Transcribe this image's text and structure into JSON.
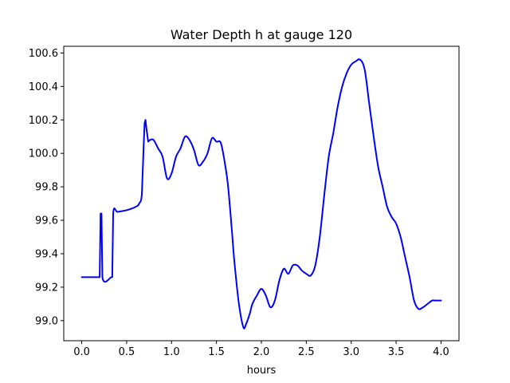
{
  "chart_data": {
    "type": "line",
    "title": "Water Depth h at gauge 120",
    "xlabel": "hours",
    "ylabel": "",
    "xlim": [
      -0.2,
      4.2
    ],
    "ylim": [
      98.88,
      100.64
    ],
    "xticks": [
      0.0,
      0.5,
      1.0,
      1.5,
      2.0,
      2.5,
      3.0,
      3.5,
      4.0
    ],
    "xtick_labels": [
      "0.0",
      "0.5",
      "1.0",
      "1.5",
      "2.0",
      "2.5",
      "3.0",
      "3.5",
      "4.0"
    ],
    "yticks": [
      99.0,
      99.2,
      99.4,
      99.6,
      99.8,
      100.0,
      100.2,
      100.4,
      100.6
    ],
    "ytick_labels": [
      "99.0",
      "99.2",
      "99.4",
      "99.6",
      "99.8",
      "100.0",
      "100.2",
      "100.4",
      "100.6"
    ],
    "grid": false,
    "series": [
      {
        "color": "#0000ff",
        "x": [
          0.0,
          0.19,
          0.2,
          0.21,
          0.22,
          0.23,
          0.33,
          0.34,
          0.35,
          0.4,
          0.5,
          0.6,
          0.64,
          0.67,
          0.69,
          0.7,
          0.71,
          0.72,
          0.74,
          0.76,
          0.8,
          0.85,
          0.9,
          0.95,
          1.0,
          1.05,
          1.1,
          1.15,
          1.2,
          1.25,
          1.3,
          1.35,
          1.4,
          1.45,
          1.5,
          1.55,
          1.6,
          1.63,
          1.67,
          1.7,
          1.75,
          1.8,
          1.83,
          1.87,
          1.9,
          1.95,
          2.0,
          2.05,
          2.1,
          2.15,
          2.2,
          2.25,
          2.3,
          2.35,
          2.4,
          2.45,
          2.5,
          2.55,
          2.6,
          2.65,
          2.7,
          2.75,
          2.8,
          2.85,
          2.9,
          2.95,
          3.0,
          3.05,
          3.1,
          3.15,
          3.2,
          3.25,
          3.3,
          3.35,
          3.4,
          3.45,
          3.5,
          3.55,
          3.6,
          3.65,
          3.7,
          3.75,
          3.8,
          3.85,
          3.9,
          3.93,
          3.96,
          4.0
        ],
        "y": [
          99.26,
          99.26,
          99.26,
          99.64,
          99.64,
          99.26,
          99.26,
          99.26,
          99.64,
          99.65,
          99.66,
          99.68,
          99.7,
          99.76,
          100.05,
          100.18,
          100.2,
          100.15,
          100.07,
          100.08,
          100.08,
          100.03,
          99.98,
          99.85,
          99.88,
          99.98,
          100.03,
          100.1,
          100.08,
          100.02,
          99.93,
          99.95,
          100.0,
          100.09,
          100.07,
          100.06,
          99.92,
          99.8,
          99.55,
          99.35,
          99.1,
          98.96,
          98.98,
          99.04,
          99.1,
          99.15,
          99.19,
          99.15,
          99.08,
          99.12,
          99.24,
          99.31,
          99.28,
          99.33,
          99.33,
          99.3,
          99.28,
          99.27,
          99.33,
          99.5,
          99.75,
          99.98,
          100.12,
          100.28,
          100.4,
          100.48,
          100.53,
          100.55,
          100.56,
          100.5,
          100.3,
          100.1,
          99.92,
          99.8,
          99.68,
          99.62,
          99.58,
          99.5,
          99.38,
          99.26,
          99.12,
          99.07,
          99.08,
          99.1,
          99.12,
          99.12,
          99.12,
          99.12
        ]
      }
    ]
  }
}
